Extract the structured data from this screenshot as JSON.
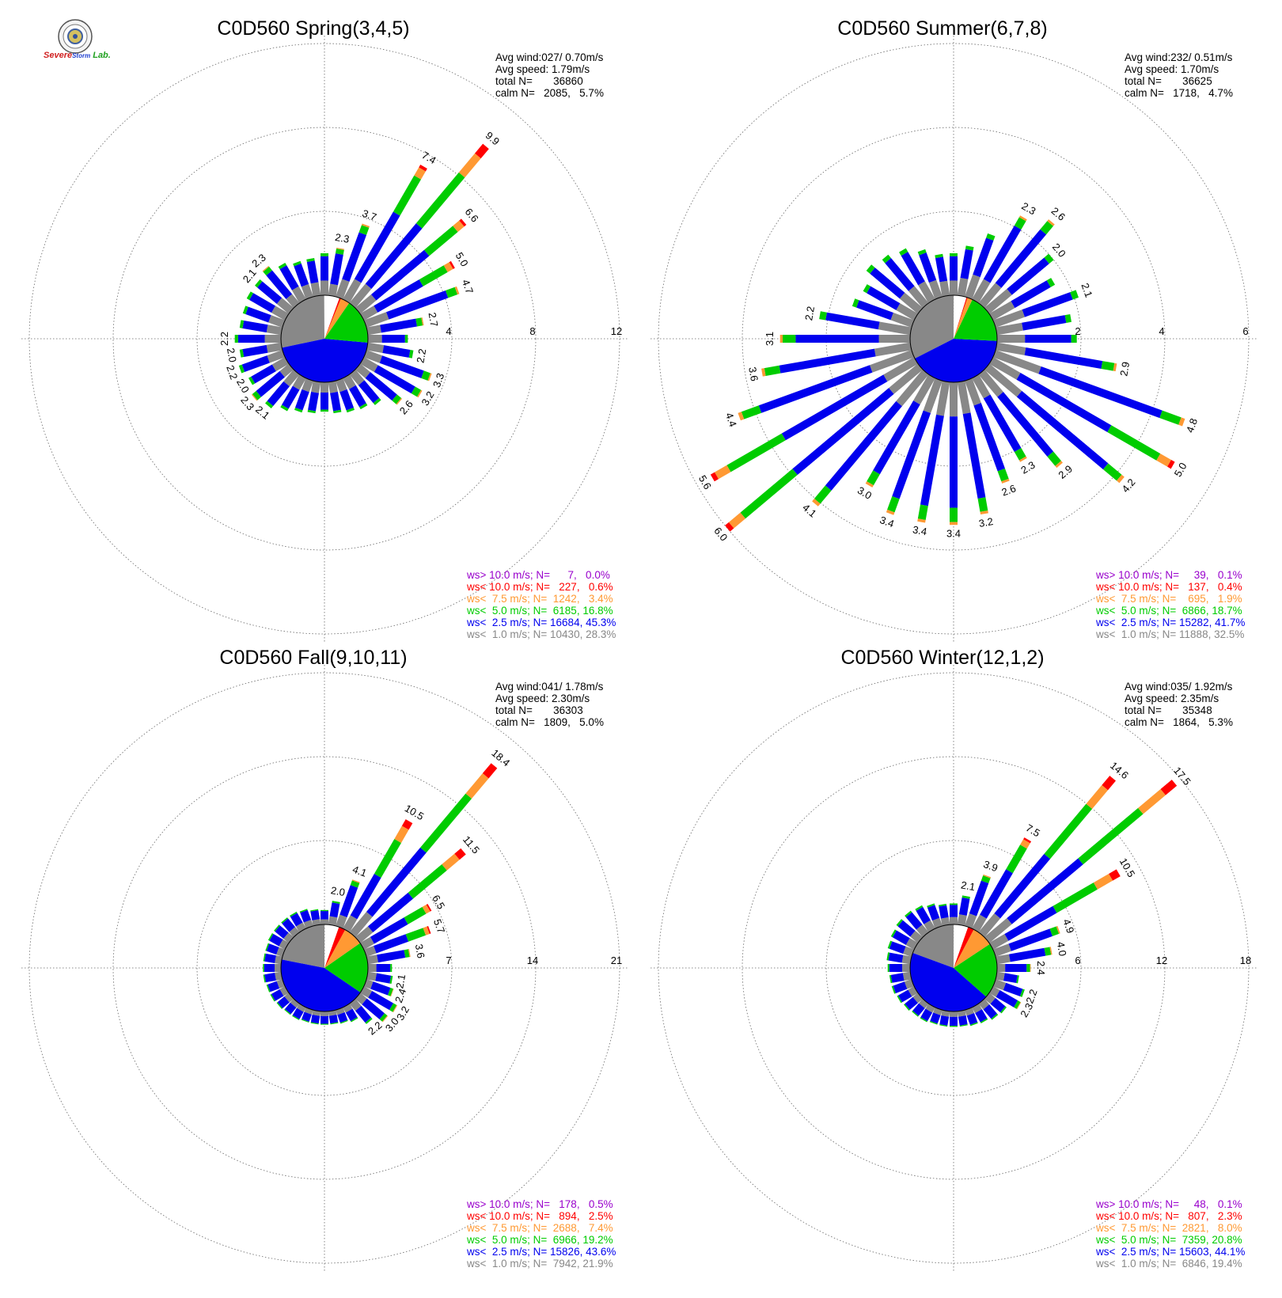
{
  "logo": {
    "line1": "Severe",
    "line2": "Storm",
    "line3": "Lab."
  },
  "colors": {
    "grey": "#888888",
    "blue": "#0000ee",
    "green": "#00cc00",
    "orange": "#ff9933",
    "red": "#ff0000",
    "purple": "#9900cc",
    "calm": "#ffffff",
    "grid": "#666666"
  },
  "chart_data": [
    {
      "type": "wind-rose",
      "title": "C0D560 Spring(3,4,5)",
      "rmax": 12,
      "ticks": [
        "4",
        "8",
        "12"
      ],
      "info": [
        "Avg wind:027/ 0.70m/s",
        "Avg speed: 1.79m/s",
        "total N=       36860",
        "calm N=   2085,   5.7%"
      ],
      "legend": [
        {
          "color": "#9900cc",
          "text": "ws> 10.0 m/s; N=      7,   0.0%"
        },
        {
          "color": "#ff0000",
          "text": "ws< 10.0 m/s; N=   227,   0.6%"
        },
        {
          "color": "#ff9933",
          "text": "ws<  7.5 m/s; N=  1242,   3.4%"
        },
        {
          "color": "#00cc00",
          "text": "ws<  5.0 m/s; N=  6185, 16.8%"
        },
        {
          "color": "#0000ee",
          "text": "ws<  2.5 m/s; N= 16684, 45.3%"
        },
        {
          "color": "#888888",
          "text": "ws<  1.0 m/s; N= 10430, 28.3%"
        }
      ],
      "pie": [
        28.3,
        45.3,
        16.8,
        3.4,
        0.6,
        5.7
      ],
      "bars": [
        {
          "dir": 0,
          "total": 2.0,
          "label": ""
        },
        {
          "dir": 10,
          "total": 2.3,
          "label": "2.3"
        },
        {
          "dir": 20,
          "total": 3.7,
          "label": "3.7"
        },
        {
          "dir": 30,
          "total": 7.4,
          "label": "7.4"
        },
        {
          "dir": 40,
          "total": 9.9,
          "label": "9.9"
        },
        {
          "dir": 50,
          "total": 6.6,
          "label": "6.6"
        },
        {
          "dir": 60,
          "total": 5.0,
          "label": "5.0"
        },
        {
          "dir": 70,
          "total": 4.7,
          "label": "4.7"
        },
        {
          "dir": 80,
          "total": 2.7,
          "label": "2.7"
        },
        {
          "dir": 90,
          "total": 1.9,
          "label": ""
        },
        {
          "dir": 100,
          "total": 2.2,
          "label": "2.2"
        },
        {
          "dir": 110,
          "total": 3.3,
          "label": "3.3"
        },
        {
          "dir": 120,
          "total": 3.2,
          "label": "3.2"
        },
        {
          "dir": 130,
          "total": 2.6,
          "label": "2.6"
        },
        {
          "dir": 140,
          "total": 1.9,
          "label": ""
        },
        {
          "dir": 150,
          "total": 1.7,
          "label": ""
        },
        {
          "dir": 160,
          "total": 1.6,
          "label": ""
        },
        {
          "dir": 170,
          "total": 1.5,
          "label": ""
        },
        {
          "dir": 180,
          "total": 1.4,
          "label": ""
        },
        {
          "dir": 190,
          "total": 1.5,
          "label": ""
        },
        {
          "dir": 200,
          "total": 1.6,
          "label": ""
        },
        {
          "dir": 210,
          "total": 1.8,
          "label": ""
        },
        {
          "dir": 220,
          "total": 2.1,
          "label": "2.1"
        },
        {
          "dir": 230,
          "total": 2.3,
          "label": "2.3"
        },
        {
          "dir": 240,
          "total": 2.0,
          "label": "2.0"
        },
        {
          "dir": 250,
          "total": 2.2,
          "label": "2.2"
        },
        {
          "dir": 260,
          "total": 2.0,
          "label": "2.0"
        },
        {
          "dir": 270,
          "total": 2.2,
          "label": "2.2"
        },
        {
          "dir": 280,
          "total": 2.0,
          "label": ""
        },
        {
          "dir": 290,
          "total": 2.0,
          "label": ""
        },
        {
          "dir": 300,
          "total": 2.1,
          "label": ""
        },
        {
          "dir": 310,
          "total": 2.1,
          "label": "2.1"
        },
        {
          "dir": 320,
          "total": 2.3,
          "label": "2.3"
        },
        {
          "dir": 330,
          "total": 2.0,
          "label": ""
        },
        {
          "dir": 340,
          "total": 1.8,
          "label": ""
        },
        {
          "dir": 350,
          "total": 1.8,
          "label": ""
        }
      ]
    },
    {
      "type": "wind-rose",
      "title": "C0D560 Summer(6,7,8)",
      "rmax": 6,
      "ticks": [
        "2",
        "4",
        "6"
      ],
      "info": [
        "Avg wind:232/ 0.51m/s",
        "Avg speed: 1.70m/s",
        "total N=       36625",
        "calm N=   1718,   4.7%"
      ],
      "legend": [
        {
          "color": "#9900cc",
          "text": "ws> 10.0 m/s; N=     39,   0.1%"
        },
        {
          "color": "#ff0000",
          "text": "ws< 10.0 m/s; N=   137,   0.4%"
        },
        {
          "color": "#ff9933",
          "text": "ws<  7.5 m/s; N=    695,   1.9%"
        },
        {
          "color": "#00cc00",
          "text": "ws<  5.0 m/s; N=  6866, 18.7%"
        },
        {
          "color": "#0000ee",
          "text": "ws<  2.5 m/s; N= 15282, 41.7%"
        },
        {
          "color": "#888888",
          "text": "ws<  1.0 m/s; N= 11888, 32.5%"
        }
      ],
      "pie": [
        32.5,
        41.7,
        18.7,
        1.9,
        0.4,
        4.7
      ],
      "bars": [
        {
          "dir": 0,
          "total": 1.0,
          "label": ""
        },
        {
          "dir": 10,
          "total": 1.2,
          "label": ""
        },
        {
          "dir": 20,
          "total": 1.6,
          "label": ""
        },
        {
          "dir": 30,
          "total": 2.3,
          "label": "2.3"
        },
        {
          "dir": 40,
          "total": 2.6,
          "label": "2.6"
        },
        {
          "dir": 50,
          "total": 2.0,
          "label": "2.0"
        },
        {
          "dir": 60,
          "total": 1.7,
          "label": ""
        },
        {
          "dir": 70,
          "total": 2.1,
          "label": "2.1"
        },
        {
          "dir": 80,
          "total": 1.8,
          "label": ""
        },
        {
          "dir": 90,
          "total": 1.9,
          "label": ""
        },
        {
          "dir": 100,
          "total": 2.9,
          "label": "2.9"
        },
        {
          "dir": 110,
          "total": 4.8,
          "label": "4.8"
        },
        {
          "dir": 120,
          "total": 5.0,
          "label": "5.0"
        },
        {
          "dir": 130,
          "total": 4.2,
          "label": "4.2"
        },
        {
          "dir": 140,
          "total": 2.9,
          "label": "2.9"
        },
        {
          "dir": 150,
          "total": 2.3,
          "label": "2.3"
        },
        {
          "dir": 160,
          "total": 2.6,
          "label": "2.6"
        },
        {
          "dir": 170,
          "total": 3.2,
          "label": "3.2"
        },
        {
          "dir": 180,
          "total": 3.4,
          "label": "3.4"
        },
        {
          "dir": 190,
          "total": 3.4,
          "label": "3.4"
        },
        {
          "dir": 200,
          "total": 3.4,
          "label": "3.4"
        },
        {
          "dir": 210,
          "total": 3.0,
          "label": "3.0"
        },
        {
          "dir": 220,
          "total": 4.1,
          "label": "4.1"
        },
        {
          "dir": 230,
          "total": 6.0,
          "label": "6.0"
        },
        {
          "dir": 240,
          "total": 5.6,
          "label": "5.6"
        },
        {
          "dir": 250,
          "total": 4.4,
          "label": "4.4"
        },
        {
          "dir": 260,
          "total": 3.6,
          "label": "3.6"
        },
        {
          "dir": 270,
          "total": 3.1,
          "label": "3.1"
        },
        {
          "dir": 280,
          "total": 2.2,
          "label": "2.2"
        },
        {
          "dir": 290,
          "total": 1.5,
          "label": ""
        },
        {
          "dir": 300,
          "total": 1.4,
          "label": ""
        },
        {
          "dir": 310,
          "total": 1.6,
          "label": ""
        },
        {
          "dir": 320,
          "total": 1.5,
          "label": ""
        },
        {
          "dir": 330,
          "total": 1.4,
          "label": ""
        },
        {
          "dir": 340,
          "total": 1.2,
          "label": ""
        },
        {
          "dir": 350,
          "total": 1.0,
          "label": ""
        }
      ]
    },
    {
      "type": "wind-rose",
      "title": "C0D560 Fall(9,10,11)",
      "rmax": 21,
      "ticks": [
        "7",
        "14",
        "21"
      ],
      "info": [
        "Avg wind:041/ 1.78m/s",
        "Avg speed: 2.30m/s",
        "total N=       36303",
        "calm N=   1809,   5.0%"
      ],
      "legend": [
        {
          "color": "#9900cc",
          "text": "ws> 10.0 m/s; N=   178,   0.5%"
        },
        {
          "color": "#ff0000",
          "text": "ws< 10.0 m/s; N=   894,   2.5%"
        },
        {
          "color": "#ff9933",
          "text": "ws<  7.5 m/s; N=  2688,   7.4%"
        },
        {
          "color": "#00cc00",
          "text": "ws<  5.0 m/s; N=  6966, 19.2%"
        },
        {
          "color": "#0000ee",
          "text": "ws<  2.5 m/s; N= 15826, 43.6%"
        },
        {
          "color": "#888888",
          "text": "ws<  1.0 m/s; N=  7942, 21.9%"
        }
      ],
      "pie": [
        21.9,
        43.6,
        19.2,
        7.4,
        2.5,
        5.0
      ],
      "bars": [
        {
          "dir": 0,
          "total": 1.2,
          "label": ""
        },
        {
          "dir": 10,
          "total": 2.0,
          "label": "2.0"
        },
        {
          "dir": 20,
          "total": 4.1,
          "label": "4.1"
        },
        {
          "dir": 30,
          "total": 10.5,
          "label": "10.5"
        },
        {
          "dir": 40,
          "total": 18.4,
          "label": "18.4"
        },
        {
          "dir": 50,
          "total": 11.5,
          "label": "11.5"
        },
        {
          "dir": 60,
          "total": 6.5,
          "label": "6.5"
        },
        {
          "dir": 70,
          "total": 5.7,
          "label": "5.7"
        },
        {
          "dir": 80,
          "total": 3.6,
          "label": "3.6"
        },
        {
          "dir": 90,
          "total": 2.0,
          "label": ""
        },
        {
          "dir": 100,
          "total": 2.1,
          "label": "2.1"
        },
        {
          "dir": 110,
          "total": 2.4,
          "label": "2.4"
        },
        {
          "dir": 120,
          "total": 3.2,
          "label": "3.2"
        },
        {
          "dir": 130,
          "total": 3.0,
          "label": "3.0"
        },
        {
          "dir": 140,
          "total": 2.2,
          "label": "2.2"
        },
        {
          "dir": 150,
          "total": 1.4,
          "label": ""
        },
        {
          "dir": 160,
          "total": 1.2,
          "label": ""
        },
        {
          "dir": 170,
          "total": 1.1,
          "label": ""
        },
        {
          "dir": 180,
          "total": 1.1,
          "label": ""
        },
        {
          "dir": 190,
          "total": 1.1,
          "label": ""
        },
        {
          "dir": 200,
          "total": 1.1,
          "label": ""
        },
        {
          "dir": 210,
          "total": 1.2,
          "label": ""
        },
        {
          "dir": 220,
          "total": 1.2,
          "label": ""
        },
        {
          "dir": 230,
          "total": 1.3,
          "label": ""
        },
        {
          "dir": 240,
          "total": 1.4,
          "label": ""
        },
        {
          "dir": 250,
          "total": 1.4,
          "label": ""
        },
        {
          "dir": 260,
          "total": 1.5,
          "label": ""
        },
        {
          "dir": 270,
          "total": 1.5,
          "label": ""
        },
        {
          "dir": 280,
          "total": 1.5,
          "label": ""
        },
        {
          "dir": 290,
          "total": 1.5,
          "label": ""
        },
        {
          "dir": 300,
          "total": 1.6,
          "label": ""
        },
        {
          "dir": 310,
          "total": 1.6,
          "label": ""
        },
        {
          "dir": 320,
          "total": 1.6,
          "label": ""
        },
        {
          "dir": 330,
          "total": 1.6,
          "label": ""
        },
        {
          "dir": 340,
          "total": 1.5,
          "label": ""
        },
        {
          "dir": 350,
          "total": 1.3,
          "label": ""
        }
      ]
    },
    {
      "type": "wind-rose",
      "title": "C0D560 Winter(12,1,2)",
      "rmax": 18,
      "ticks": [
        "6",
        "12",
        "18"
      ],
      "info": [
        "Avg wind:035/ 1.92m/s",
        "Avg speed: 2.35m/s",
        "total N=       35348",
        "calm N=   1864,   5.3%"
      ],
      "legend": [
        {
          "color": "#9900cc",
          "text": "ws> 10.0 m/s; N=     48,   0.1%"
        },
        {
          "color": "#ff0000",
          "text": "ws< 10.0 m/s; N=   807,   2.3%"
        },
        {
          "color": "#ff9933",
          "text": "ws<  7.5 m/s; N=  2821,   8.0%"
        },
        {
          "color": "#00cc00",
          "text": "ws<  5.0 m/s; N=  7359, 20.8%"
        },
        {
          "color": "#0000ee",
          "text": "ws<  2.5 m/s; N= 15603, 44.1%"
        },
        {
          "color": "#888888",
          "text": "ws<  1.0 m/s; N=  6846, 19.4%"
        }
      ],
      "pie": [
        19.4,
        44.1,
        20.8,
        8.0,
        2.3,
        5.3
      ],
      "bars": [
        {
          "dir": 0,
          "total": 1.5,
          "label": ""
        },
        {
          "dir": 10,
          "total": 2.1,
          "label": "2.1"
        },
        {
          "dir": 20,
          "total": 3.9,
          "label": "3.9"
        },
        {
          "dir": 30,
          "total": 7.5,
          "label": "7.5"
        },
        {
          "dir": 40,
          "total": 14.6,
          "label": "14.6"
        },
        {
          "dir": 50,
          "total": 17.5,
          "label": "17.5"
        },
        {
          "dir": 60,
          "total": 10.5,
          "label": "10.5"
        },
        {
          "dir": 70,
          "total": 4.9,
          "label": "4.9"
        },
        {
          "dir": 80,
          "total": 4.0,
          "label": "4.0"
        },
        {
          "dir": 90,
          "total": 2.4,
          "label": "2.4"
        },
        {
          "dir": 100,
          "total": 1.6,
          "label": ""
        },
        {
          "dir": 110,
          "total": 2.2,
          "label": "2.2"
        },
        {
          "dir": 120,
          "total": 2.3,
          "label": "2.3"
        },
        {
          "dir": 130,
          "total": 1.6,
          "label": ""
        },
        {
          "dir": 140,
          "total": 1.5,
          "label": ""
        },
        {
          "dir": 150,
          "total": 1.3,
          "label": ""
        },
        {
          "dir": 160,
          "total": 1.2,
          "label": ""
        },
        {
          "dir": 170,
          "total": 1.1,
          "label": ""
        },
        {
          "dir": 180,
          "total": 1.1,
          "label": ""
        },
        {
          "dir": 190,
          "total": 1.1,
          "label": ""
        },
        {
          "dir": 200,
          "total": 1.1,
          "label": ""
        },
        {
          "dir": 210,
          "total": 1.2,
          "label": ""
        },
        {
          "dir": 220,
          "total": 1.2,
          "label": ""
        },
        {
          "dir": 230,
          "total": 1.3,
          "label": ""
        },
        {
          "dir": 240,
          "total": 1.4,
          "label": ""
        },
        {
          "dir": 250,
          "total": 1.5,
          "label": ""
        },
        {
          "dir": 260,
          "total": 1.5,
          "label": ""
        },
        {
          "dir": 270,
          "total": 1.6,
          "label": ""
        },
        {
          "dir": 280,
          "total": 1.7,
          "label": ""
        },
        {
          "dir": 290,
          "total": 1.8,
          "label": ""
        },
        {
          "dir": 300,
          "total": 1.9,
          "label": ""
        },
        {
          "dir": 310,
          "total": 2.0,
          "label": ""
        },
        {
          "dir": 320,
          "total": 2.0,
          "label": ""
        },
        {
          "dir": 330,
          "total": 1.9,
          "label": ""
        },
        {
          "dir": 340,
          "total": 1.7,
          "label": ""
        },
        {
          "dir": 350,
          "total": 1.5,
          "label": ""
        }
      ]
    }
  ]
}
